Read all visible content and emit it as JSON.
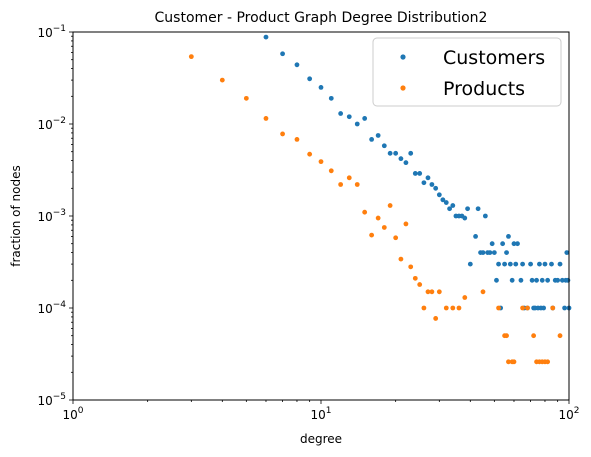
{
  "chart_data": {
    "type": "scatter",
    "title": "Customer - Product Graph Degree Distribution2",
    "xlabel": "degree",
    "ylabel": "fraction of nodes",
    "xscale": "log",
    "yscale": "log",
    "xlim": [
      1,
      100
    ],
    "ylim": [
      1e-05,
      0.1
    ],
    "x_ticks": [
      {
        "value": 1,
        "base": "10",
        "exp": "0"
      },
      {
        "value": 10,
        "base": "10",
        "exp": "1"
      },
      {
        "value": 100,
        "base": "10",
        "exp": "2"
      }
    ],
    "y_ticks": [
      {
        "value": 1e-05,
        "base": "10",
        "exp": "−5"
      },
      {
        "value": 0.0001,
        "base": "10",
        "exp": "−4"
      },
      {
        "value": 0.001,
        "base": "10",
        "exp": "−3"
      },
      {
        "value": 0.01,
        "base": "10",
        "exp": "−2"
      },
      {
        "value": 0.1,
        "base": "10",
        "exp": "−1"
      }
    ],
    "grid": false,
    "legend_position": "top-right",
    "series": [
      {
        "name": "Customers",
        "color": "#1f77b4",
        "points": [
          [
            6,
            0.088
          ],
          [
            7,
            0.058
          ],
          [
            8,
            0.044
          ],
          [
            9,
            0.031
          ],
          [
            10,
            0.025
          ],
          [
            11,
            0.019
          ],
          [
            12,
            0.013
          ],
          [
            13,
            0.012
          ],
          [
            14,
            0.01
          ],
          [
            15,
            0.0115
          ],
          [
            16,
            0.0068
          ],
          [
            17,
            0.0075
          ],
          [
            18,
            0.0058
          ],
          [
            19,
            0.0048
          ],
          [
            20,
            0.0048
          ],
          [
            21,
            0.0042
          ],
          [
            22,
            0.0038
          ],
          [
            23,
            0.0048
          ],
          [
            24,
            0.0029
          ],
          [
            25,
            0.0029
          ],
          [
            26,
            0.0023
          ],
          [
            27,
            0.0026
          ],
          [
            28,
            0.0022
          ],
          [
            29,
            0.002
          ],
          [
            30,
            0.0017
          ],
          [
            31,
            0.0015
          ],
          [
            32,
            0.0014
          ],
          [
            33,
            0.0012
          ],
          [
            34,
            0.0013
          ],
          [
            35,
            0.001
          ],
          [
            36,
            0.001
          ],
          [
            37,
            0.001
          ],
          [
            38,
            0.00095
          ],
          [
            39,
            0.0012
          ],
          [
            40,
            0.0003
          ],
          [
            42,
            0.0006
          ],
          [
            43,
            0.0012
          ],
          [
            44,
            0.0004
          ],
          [
            45,
            0.0004
          ],
          [
            46,
            0.001
          ],
          [
            47,
            0.0004
          ],
          [
            48,
            0.0004
          ],
          [
            49,
            0.0005
          ],
          [
            50,
            0.0004
          ],
          [
            51,
            0.0002
          ],
          [
            52,
            0.0003
          ],
          [
            53,
            0.0001
          ],
          [
            54,
            0.0005
          ],
          [
            55,
            0.0003
          ],
          [
            56,
            0.0004
          ],
          [
            57,
            0.0006
          ],
          [
            58,
            0.0003
          ],
          [
            59,
            0.0002
          ],
          [
            60,
            0.0005
          ],
          [
            61,
            0.0003
          ],
          [
            62,
            0.0005
          ],
          [
            64,
            0.0002
          ],
          [
            65,
            0.0003
          ],
          [
            66,
            0.0001
          ],
          [
            68,
            0.0001
          ],
          [
            70,
            0.0003
          ],
          [
            71,
            0.0002
          ],
          [
            72,
            0.0001
          ],
          [
            73,
            0.0001
          ],
          [
            74,
            0.0002
          ],
          [
            75,
            0.0001
          ],
          [
            76,
            0.0003
          ],
          [
            77,
            0.0001
          ],
          [
            78,
            0.0002
          ],
          [
            79,
            0.0001
          ],
          [
            80,
            0.0003
          ],
          [
            82,
            0.0002
          ],
          [
            85,
            0.0003
          ],
          [
            86,
            0.0001
          ],
          [
            88,
            0.0002
          ],
          [
            90,
            0.0002
          ],
          [
            92,
            0.0003
          ],
          [
            94,
            0.0002
          ],
          [
            96,
            0.0001
          ],
          [
            97,
            0.0002
          ],
          [
            98,
            0.0004
          ],
          [
            99,
            0.0002
          ],
          [
            100,
            0.0001
          ]
        ]
      },
      {
        "name": "Products",
        "color": "#ff7f0e",
        "points": [
          [
            3,
            0.054
          ],
          [
            4,
            0.03
          ],
          [
            5,
            0.019
          ],
          [
            6,
            0.0115
          ],
          [
            7,
            0.0078
          ],
          [
            8,
            0.0068
          ],
          [
            9,
            0.0047
          ],
          [
            10,
            0.0039
          ],
          [
            11,
            0.0031
          ],
          [
            12,
            0.0022
          ],
          [
            13,
            0.0026
          ],
          [
            14,
            0.0022
          ],
          [
            15,
            0.0011
          ],
          [
            16,
            0.00062
          ],
          [
            17,
            0.00095
          ],
          [
            18,
            0.00075
          ],
          [
            19,
            0.0013
          ],
          [
            20,
            0.00058
          ],
          [
            21,
            0.00034
          ],
          [
            22,
            0.00082
          ],
          [
            23,
            0.00028
          ],
          [
            24,
            0.00021
          ],
          [
            25,
            0.00018
          ],
          [
            26,
            0.0001
          ],
          [
            27,
            0.00015
          ],
          [
            28,
            0.00015
          ],
          [
            29,
            7.7e-05
          ],
          [
            30,
            0.00015
          ],
          [
            32,
            0.0001
          ],
          [
            34,
            0.0001
          ],
          [
            36,
            0.0001
          ],
          [
            38,
            0.00013
          ],
          [
            45,
            0.00015
          ],
          [
            52,
            0.0001
          ],
          [
            55,
            5e-05
          ],
          [
            56,
            5e-05
          ],
          [
            57,
            2.6e-05
          ],
          [
            59,
            2.6e-05
          ],
          [
            60,
            2.6e-05
          ],
          [
            65,
            0.0001
          ],
          [
            68,
            0.0001
          ],
          [
            72,
            5e-05
          ],
          [
            74,
            2.6e-05
          ],
          [
            76,
            2.6e-05
          ],
          [
            78,
            2.6e-05
          ],
          [
            80,
            2.6e-05
          ],
          [
            82,
            2.6e-05
          ],
          [
            86,
            0.0001
          ],
          [
            92,
            5e-05
          ]
        ]
      }
    ]
  }
}
